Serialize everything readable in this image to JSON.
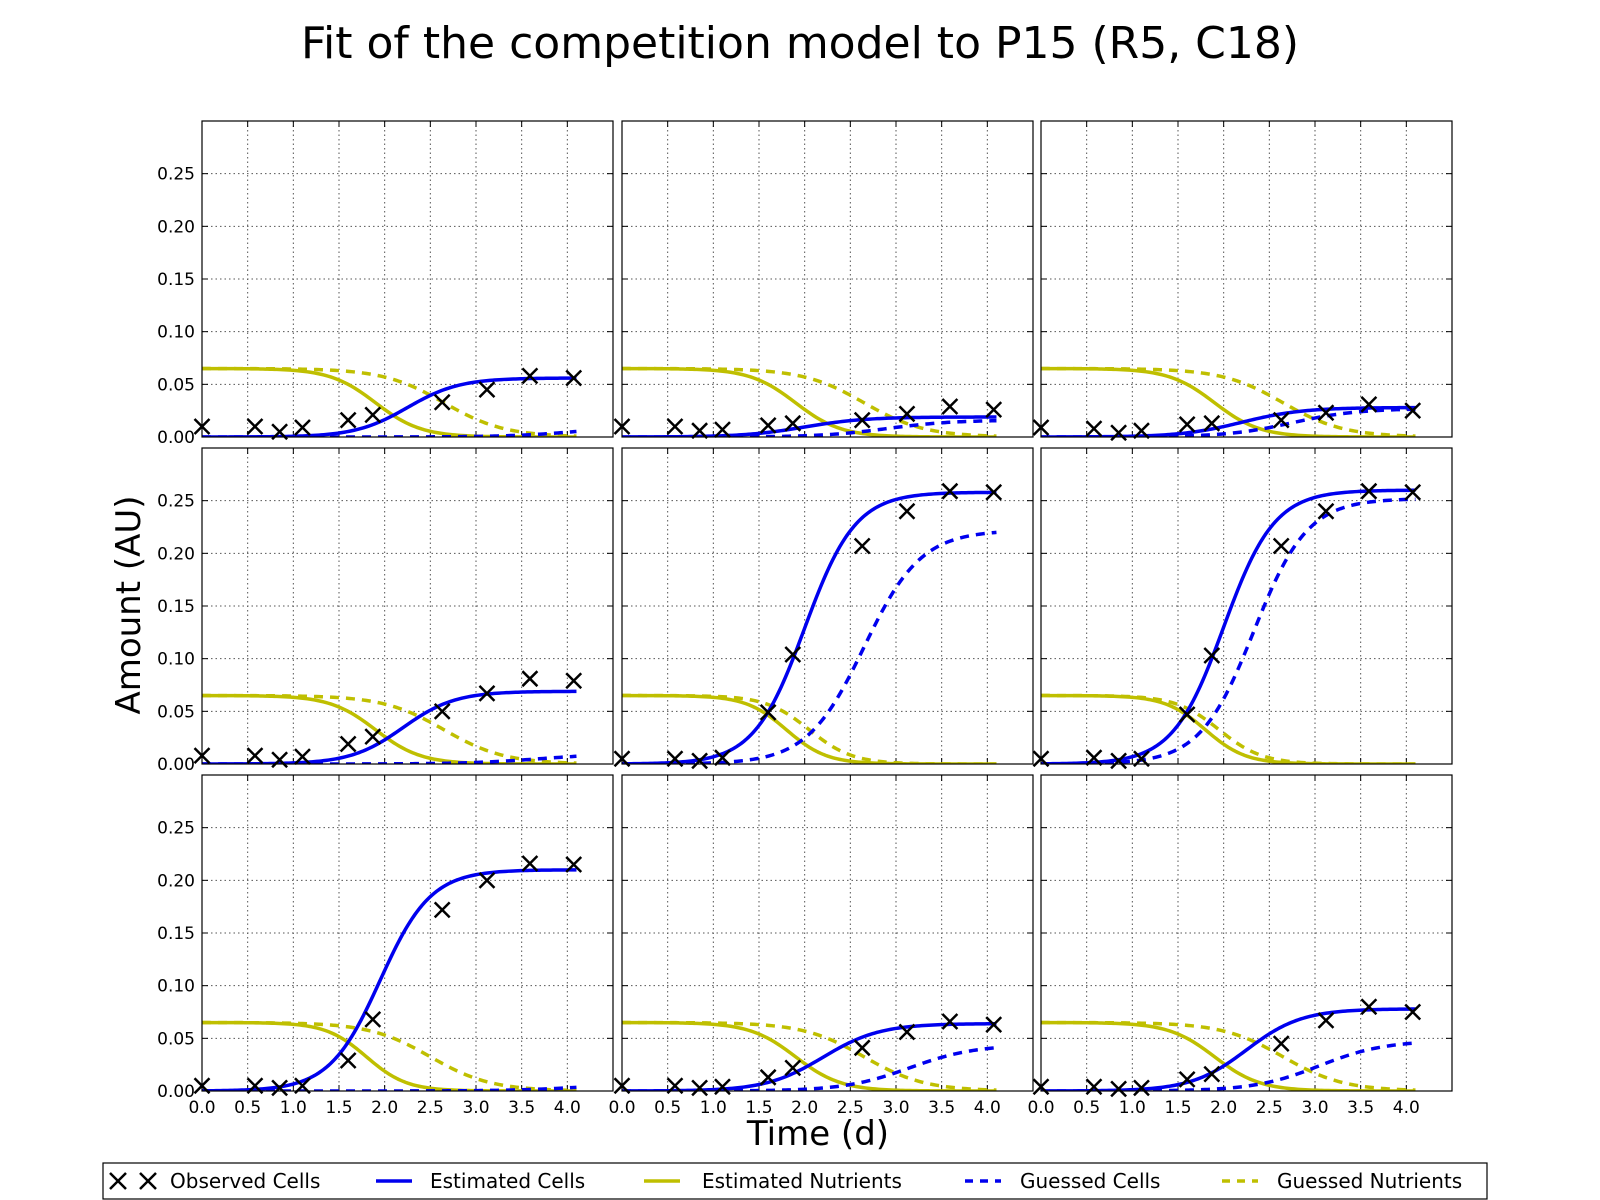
{
  "chart_data": {
    "type": "line",
    "title": "Fit of the competition model to P15 (R5, C18)",
    "xlabel": "Time (d)",
    "ylabel": "Amount (AU)",
    "xlim": [
      0,
      4.5
    ],
    "ylim": [
      0,
      0.3
    ],
    "x_ticks": [
      "0.0",
      "0.5",
      "1.0",
      "1.5",
      "2.0",
      "2.5",
      "3.0",
      "3.5",
      "4.0"
    ],
    "y_ticks": [
      "0.00",
      "0.05",
      "0.10",
      "0.15",
      "0.20",
      "0.25"
    ],
    "grid": true,
    "legend_position": "bottom",
    "colors": {
      "cells": "#0000ee",
      "nutrients": "#bfbf00",
      "observed": "#000000"
    },
    "legend": [
      {
        "label": "Observed Cells",
        "style": "marker"
      },
      {
        "label": "Estimated Cells",
        "style": "solid-blue"
      },
      {
        "label": "Estimated Nutrients",
        "style": "solid-yellow"
      },
      {
        "label": "Guessed Cells",
        "style": "dashed-blue"
      },
      {
        "label": "Guessed Nutrients",
        "style": "dashed-yellow"
      }
    ],
    "obs_times": [
      0.0,
      0.58,
      0.85,
      1.1,
      1.6,
      1.87,
      2.63,
      3.12,
      3.59,
      4.07
    ],
    "panels": [
      {
        "obs": [
          0.01,
          0.01,
          0.005,
          0.009,
          0.016,
          0.021,
          0.033,
          0.045,
          0.058,
          0.056
        ],
        "est_cells": {
          "K": 0.056,
          "r": 3.5,
          "t0": 2.25
        },
        "guess_cells": {
          "K": 0.012,
          "r": 2.5,
          "t0": 4.2
        },
        "est_nutrients": {
          "t0": 1.9,
          "r": 4.0
        },
        "guess_nutrients": {
          "t0": 2.65,
          "r": 3.0
        }
      },
      {
        "obs": [
          0.01,
          0.01,
          0.006,
          0.007,
          0.011,
          0.013,
          0.016,
          0.022,
          0.029,
          0.026
        ],
        "est_cells": {
          "K": 0.019,
          "r": 3.0,
          "t0": 2.0
        },
        "guess_cells": {
          "K": 0.016,
          "r": 2.8,
          "t0": 2.9
        },
        "est_nutrients": {
          "t0": 1.9,
          "r": 4.0
        },
        "guess_nutrients": {
          "t0": 2.65,
          "r": 3.0
        }
      },
      {
        "obs": [
          0.009,
          0.008,
          0.004,
          0.006,
          0.012,
          0.013,
          0.016,
          0.023,
          0.031,
          0.025
        ],
        "est_cells": {
          "K": 0.028,
          "r": 3.0,
          "t0": 2.2
        },
        "guess_cells": {
          "K": 0.027,
          "r": 2.8,
          "t0": 2.75
        },
        "est_nutrients": {
          "t0": 1.9,
          "r": 4.0
        },
        "guess_nutrients": {
          "t0": 2.65,
          "r": 3.0
        }
      },
      {
        "obs": [
          0.008,
          0.008,
          0.004,
          0.007,
          0.019,
          0.026,
          0.05,
          0.067,
          0.081,
          0.079
        ],
        "est_cells": {
          "K": 0.069,
          "r": 3.5,
          "t0": 2.2
        },
        "guess_cells": {
          "K": 0.01,
          "r": 2.5,
          "t0": 3.7
        },
        "est_nutrients": {
          "t0": 1.9,
          "r": 4.0
        },
        "guess_nutrients": {
          "t0": 2.65,
          "r": 3.0
        }
      },
      {
        "obs": [
          0.005,
          0.005,
          0.003,
          0.006,
          0.049,
          0.104,
          0.207,
          0.24,
          0.259,
          0.258
        ],
        "est_cells": {
          "K": 0.258,
          "r": 3.6,
          "t0": 2.0
        },
        "guess_cells": {
          "K": 0.222,
          "r": 3.2,
          "t0": 2.65
        },
        "est_nutrients": {
          "t0": 1.8,
          "r": 4.5
        },
        "guess_nutrients": {
          "t0": 2.05,
          "r": 4.2
        }
      },
      {
        "obs": [
          0.005,
          0.006,
          0.003,
          0.005,
          0.047,
          0.103,
          0.207,
          0.24,
          0.259,
          0.258
        ],
        "est_cells": {
          "K": 0.26,
          "r": 3.6,
          "t0": 2.0
        },
        "guess_cells": {
          "K": 0.252,
          "r": 3.4,
          "t0": 2.33
        },
        "est_nutrients": {
          "t0": 1.8,
          "r": 4.5
        },
        "guess_nutrients": {
          "t0": 1.95,
          "r": 4.2
        }
      },
      {
        "obs": [
          0.005,
          0.005,
          0.003,
          0.005,
          0.029,
          0.068,
          0.172,
          0.2,
          0.216,
          0.215
        ],
        "est_cells": {
          "K": 0.21,
          "r": 3.6,
          "t0": 1.95
        },
        "guess_cells": {
          "K": 0.008,
          "r": 2.5,
          "t0": 4.2
        },
        "est_nutrients": {
          "t0": 1.8,
          "r": 4.5
        },
        "guess_nutrients": {
          "t0": 2.5,
          "r": 3.0
        }
      },
      {
        "obs": [
          0.005,
          0.005,
          0.003,
          0.004,
          0.013,
          0.022,
          0.041,
          0.056,
          0.066,
          0.063
        ],
        "est_cells": {
          "K": 0.064,
          "r": 3.2,
          "t0": 2.2
        },
        "guess_cells": {
          "K": 0.044,
          "r": 2.8,
          "t0": 3.15
        },
        "est_nutrients": {
          "t0": 1.9,
          "r": 4.0
        },
        "guess_nutrients": {
          "t0": 2.65,
          "r": 3.0
        }
      },
      {
        "obs": [
          0.004,
          0.004,
          0.002,
          0.003,
          0.011,
          0.016,
          0.045,
          0.067,
          0.08,
          0.075
        ],
        "est_cells": {
          "K": 0.078,
          "r": 3.3,
          "t0": 2.25
        },
        "guess_cells": {
          "K": 0.048,
          "r": 2.8,
          "t0": 3.05
        },
        "est_nutrients": {
          "t0": 1.9,
          "r": 4.0
        },
        "guess_nutrients": {
          "t0": 2.65,
          "r": 3.0
        }
      }
    ],
    "initial_nutrients": 0.065
  }
}
